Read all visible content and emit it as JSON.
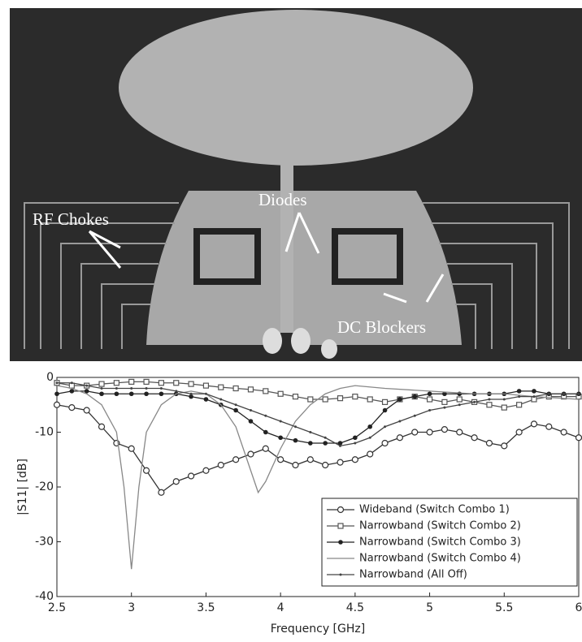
{
  "photo_labels": [
    "RF Chokes",
    "Diodes",
    "DC Blockers"
  ],
  "chart_data": {
    "type": "line",
    "xlabel": "Frequency [GHz]",
    "ylabel": "|S11| [dB]",
    "xlim": [
      2.5,
      6
    ],
    "ylim": [
      -40,
      0
    ],
    "xticks": [
      2.5,
      3,
      3.5,
      4,
      4.5,
      5,
      5.5,
      6
    ],
    "yticks": [
      -40,
      -30,
      -20,
      -10,
      0
    ],
    "legend": "lower right",
    "x": [
      2.5,
      2.6,
      2.7,
      2.8,
      2.9,
      3.0,
      3.1,
      3.2,
      3.3,
      3.4,
      3.5,
      3.6,
      3.7,
      3.8,
      3.9,
      4.0,
      4.1,
      4.2,
      4.3,
      4.4,
      4.5,
      4.6,
      4.7,
      4.8,
      4.9,
      5.0,
      5.1,
      5.2,
      5.3,
      5.4,
      5.5,
      5.6,
      5.7,
      5.8,
      5.9,
      6.0
    ],
    "series": [
      {
        "name": "Wideband (Switch Combo 1)",
        "color": "#333333",
        "marker": "circle",
        "values": [
          -5,
          -5.5,
          -6,
          -9,
          -12,
          -13,
          -17,
          -21,
          -19,
          -18,
          -17,
          -16,
          -15,
          -14,
          -13,
          -15,
          -16,
          -15,
          -16,
          -15.5,
          -15,
          -14,
          -12,
          -11,
          -10,
          -10,
          -9.5,
          -10,
          -11,
          -12,
          -12.5,
          -10,
          -8.5,
          -9,
          -10,
          -11
        ]
      },
      {
        "name": "Narrowband (Switch Combo 2)",
        "color": "#555555",
        "marker": "square",
        "values": [
          -1,
          -1.5,
          -1.5,
          -1.2,
          -1,
          -0.8,
          -0.8,
          -1,
          -1,
          -1.2,
          -1.5,
          -1.8,
          -2,
          -2.2,
          -2.5,
          -3,
          -3.5,
          -4,
          -4,
          -3.8,
          -3.5,
          -4,
          -4.5,
          -4,
          -3.5,
          -4,
          -4.5,
          -4,
          -4.5,
          -5,
          -5.5,
          -5,
          -4,
          -3.5,
          -3.5,
          -3.5
        ]
      },
      {
        "name": "Narrowband (Switch Combo 3)",
        "color": "#222222",
        "marker": "dot",
        "values": [
          -3,
          -2.5,
          -2.5,
          -3,
          -3,
          -3,
          -3,
          -3,
          -3,
          -3.5,
          -4,
          -5,
          -6,
          -8,
          -10,
          -11,
          -11.5,
          -12,
          -12,
          -12,
          -11,
          -9,
          -6,
          -4,
          -3.5,
          -3,
          -3,
          -3,
          -3,
          -3,
          -3,
          -2.5,
          -2.5,
          -3,
          -3,
          -3
        ]
      },
      {
        "name": "Narrowband (Switch Combo 4)",
        "color": "#888888",
        "marker": "none",
        "x": [
          2.5,
          2.6,
          2.7,
          2.8,
          2.9,
          2.95,
          3.0,
          3.05,
          3.1,
          3.2,
          3.3,
          3.4,
          3.5,
          3.6,
          3.7,
          3.8,
          3.85,
          3.9,
          4.0,
          4.1,
          4.2,
          4.3,
          4.4,
          4.5,
          4.7,
          5.0,
          5.3,
          5.5,
          5.7,
          6.0
        ],
        "values": [
          -1.5,
          -2,
          -3,
          -5,
          -10,
          -20,
          -35,
          -20,
          -10,
          -5,
          -3,
          -2.5,
          -3,
          -5,
          -9,
          -17,
          -21,
          -19,
          -13,
          -8,
          -5,
          -3,
          -2,
          -1.5,
          -2,
          -2.5,
          -3,
          -3,
          -3.5,
          -4
        ]
      },
      {
        "name": "Narrowband (All Off)",
        "color": "#444444",
        "marker": "tick",
        "values": [
          -1,
          -1,
          -1.5,
          -2,
          -2,
          -2,
          -2,
          -2,
          -2.5,
          -3,
          -3,
          -4,
          -5,
          -6,
          -7,
          -8,
          -9,
          -10,
          -11,
          -12.5,
          -12,
          -11,
          -9,
          -8,
          -7,
          -6,
          -5.5,
          -5,
          -4.5,
          -4,
          -4,
          -3.5,
          -3.5,
          -3,
          -3,
          -3
        ]
      }
    ]
  }
}
